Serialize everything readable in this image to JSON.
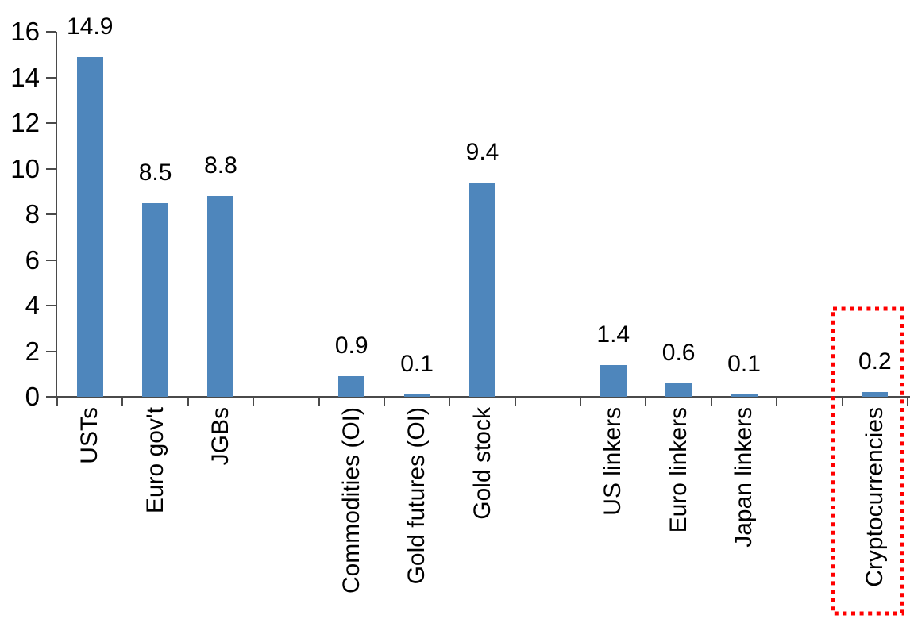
{
  "chart_data": {
    "type": "bar",
    "title": "",
    "xlabel": "",
    "ylabel": "",
    "categories": [
      "USTs",
      "Euro gov't",
      "JGBs",
      "",
      "Commodities (OI)",
      "Gold futures (OI)",
      "Gold stock",
      "",
      "US linkers",
      "Euro linkers",
      "Japan linkers",
      "",
      "Cryptocurrencies"
    ],
    "values": [
      14.9,
      8.5,
      8.8,
      null,
      0.9,
      0.1,
      9.4,
      null,
      1.4,
      0.6,
      0.1,
      null,
      0.2
    ],
    "data_labels": [
      "14.9",
      "8.5",
      "8.8",
      "",
      "0.9",
      "0.1",
      "9.4",
      "",
      "1.4",
      "0.6",
      "0.1",
      "",
      "0.2"
    ],
    "y_ticks": [
      0,
      2,
      4,
      6,
      8,
      10,
      12,
      14,
      16
    ],
    "ylim": [
      0,
      16
    ],
    "grid": "off",
    "legend": "none",
    "bar_color": "#4E86BC",
    "axis_color": "#4a4a4a",
    "label_color": "#000000",
    "highlight": {
      "category": "Cryptocurrencies",
      "shape": "dotted-rectangle",
      "color": "#FF0000"
    }
  }
}
